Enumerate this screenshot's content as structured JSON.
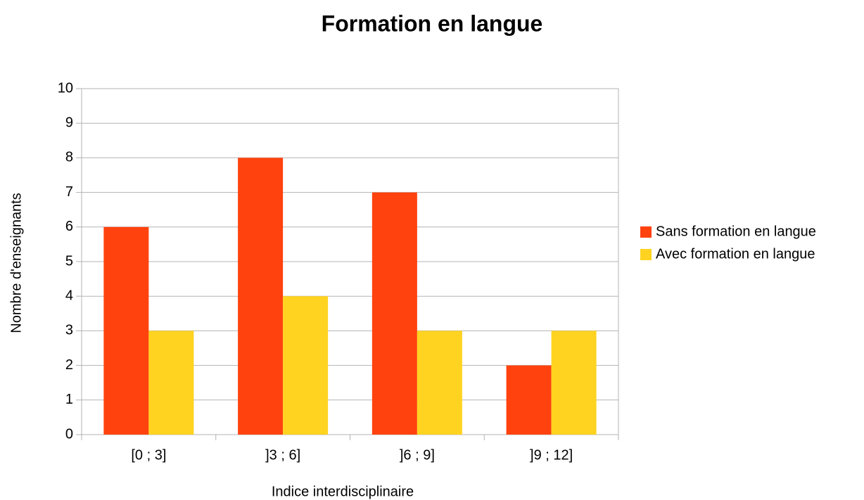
{
  "chart_data": {
    "type": "bar",
    "title": "Formation en langue",
    "x_label": "Indice interdisciplinaire",
    "y_label": "Nombre d'enseignants",
    "categories": [
      "[0 ; 3]",
      "]3 ; 6]",
      "]6 ; 9]",
      "]9 ; 12]"
    ],
    "series": [
      {
        "name": "Sans formation en langue",
        "color": "#ff420e",
        "values": [
          6,
          8,
          7,
          2
        ]
      },
      {
        "name": "Avec formation en langue",
        "color": "#ffd320",
        "values": [
          3,
          4,
          3,
          3
        ]
      }
    ],
    "ylim": [
      0,
      10
    ],
    "yticks": [
      0,
      1,
      2,
      3,
      4,
      5,
      6,
      7,
      8,
      9,
      10
    ],
    "grid": true,
    "legend": "right"
  }
}
